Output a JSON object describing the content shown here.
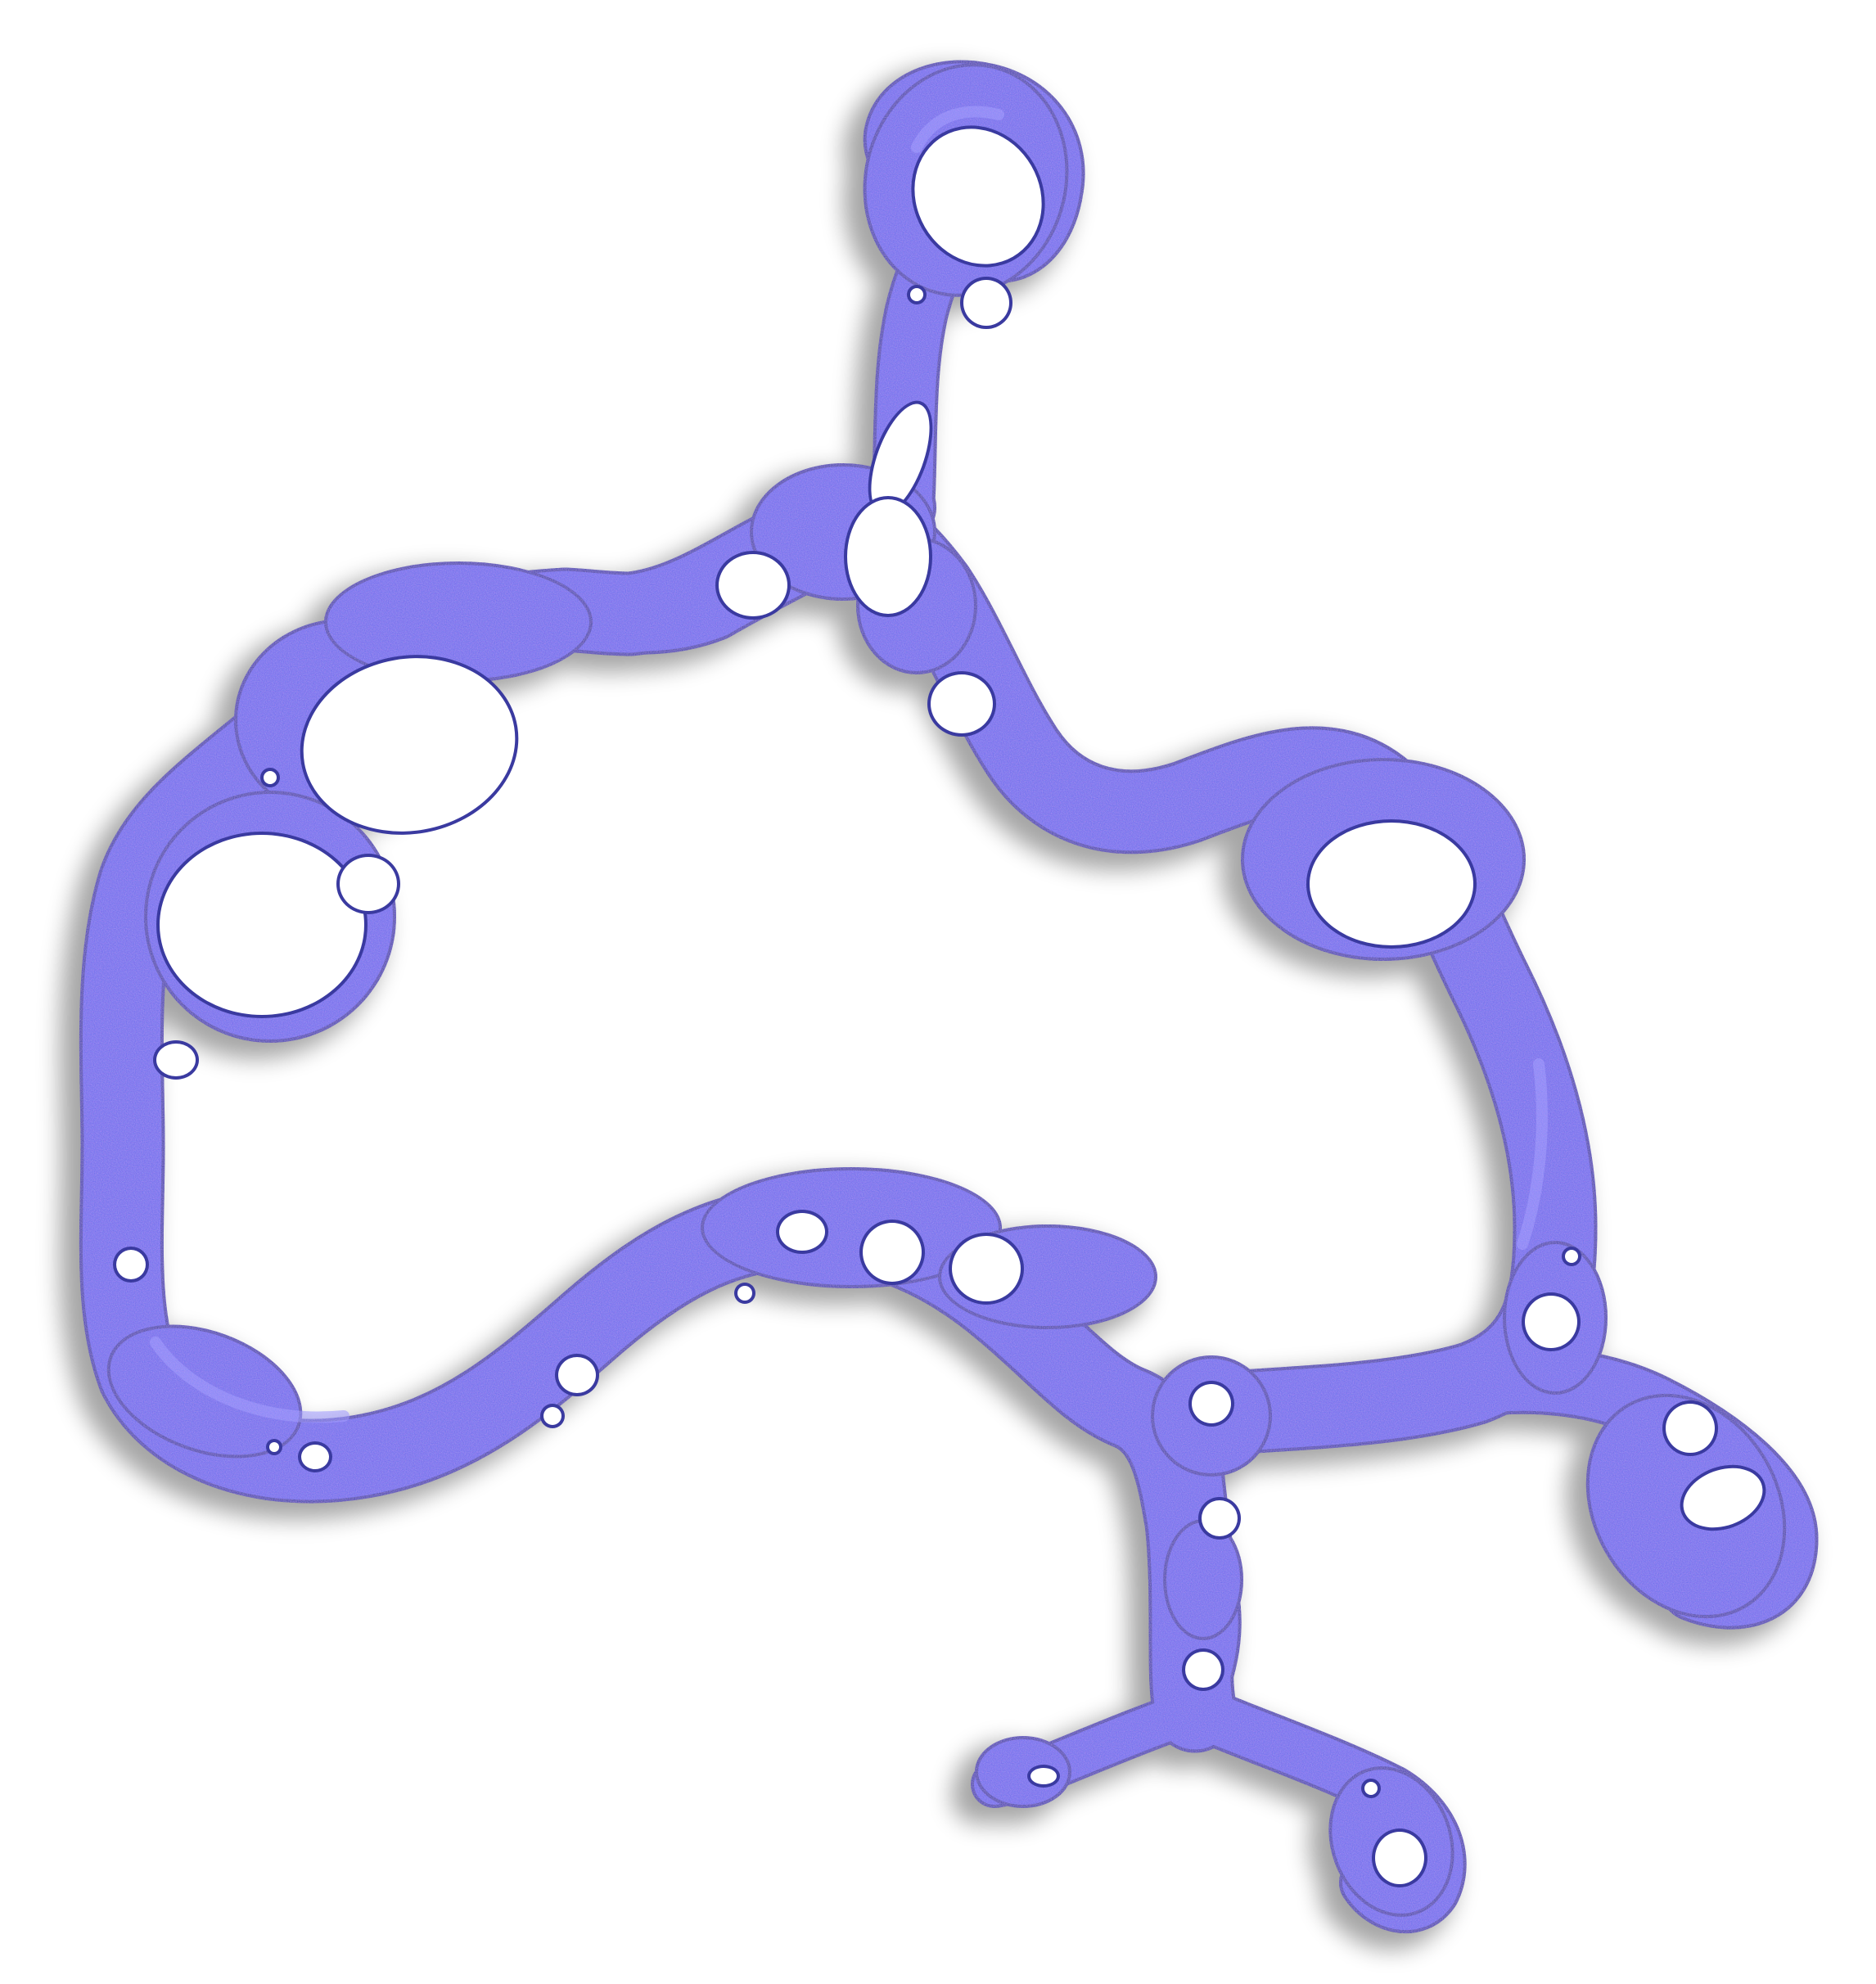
{
  "image": {
    "subject": "blob-network-shape",
    "background_color": "#ffffff",
    "fill_color": "#6a67ea",
    "highlight_color": "#9c9cff",
    "speckle_colors": [
      "#b06be8",
      "#7fa7ff",
      "#4d4fd8"
    ],
    "edge_color": "#3a3aa0",
    "shadow_color": "#000000"
  }
}
